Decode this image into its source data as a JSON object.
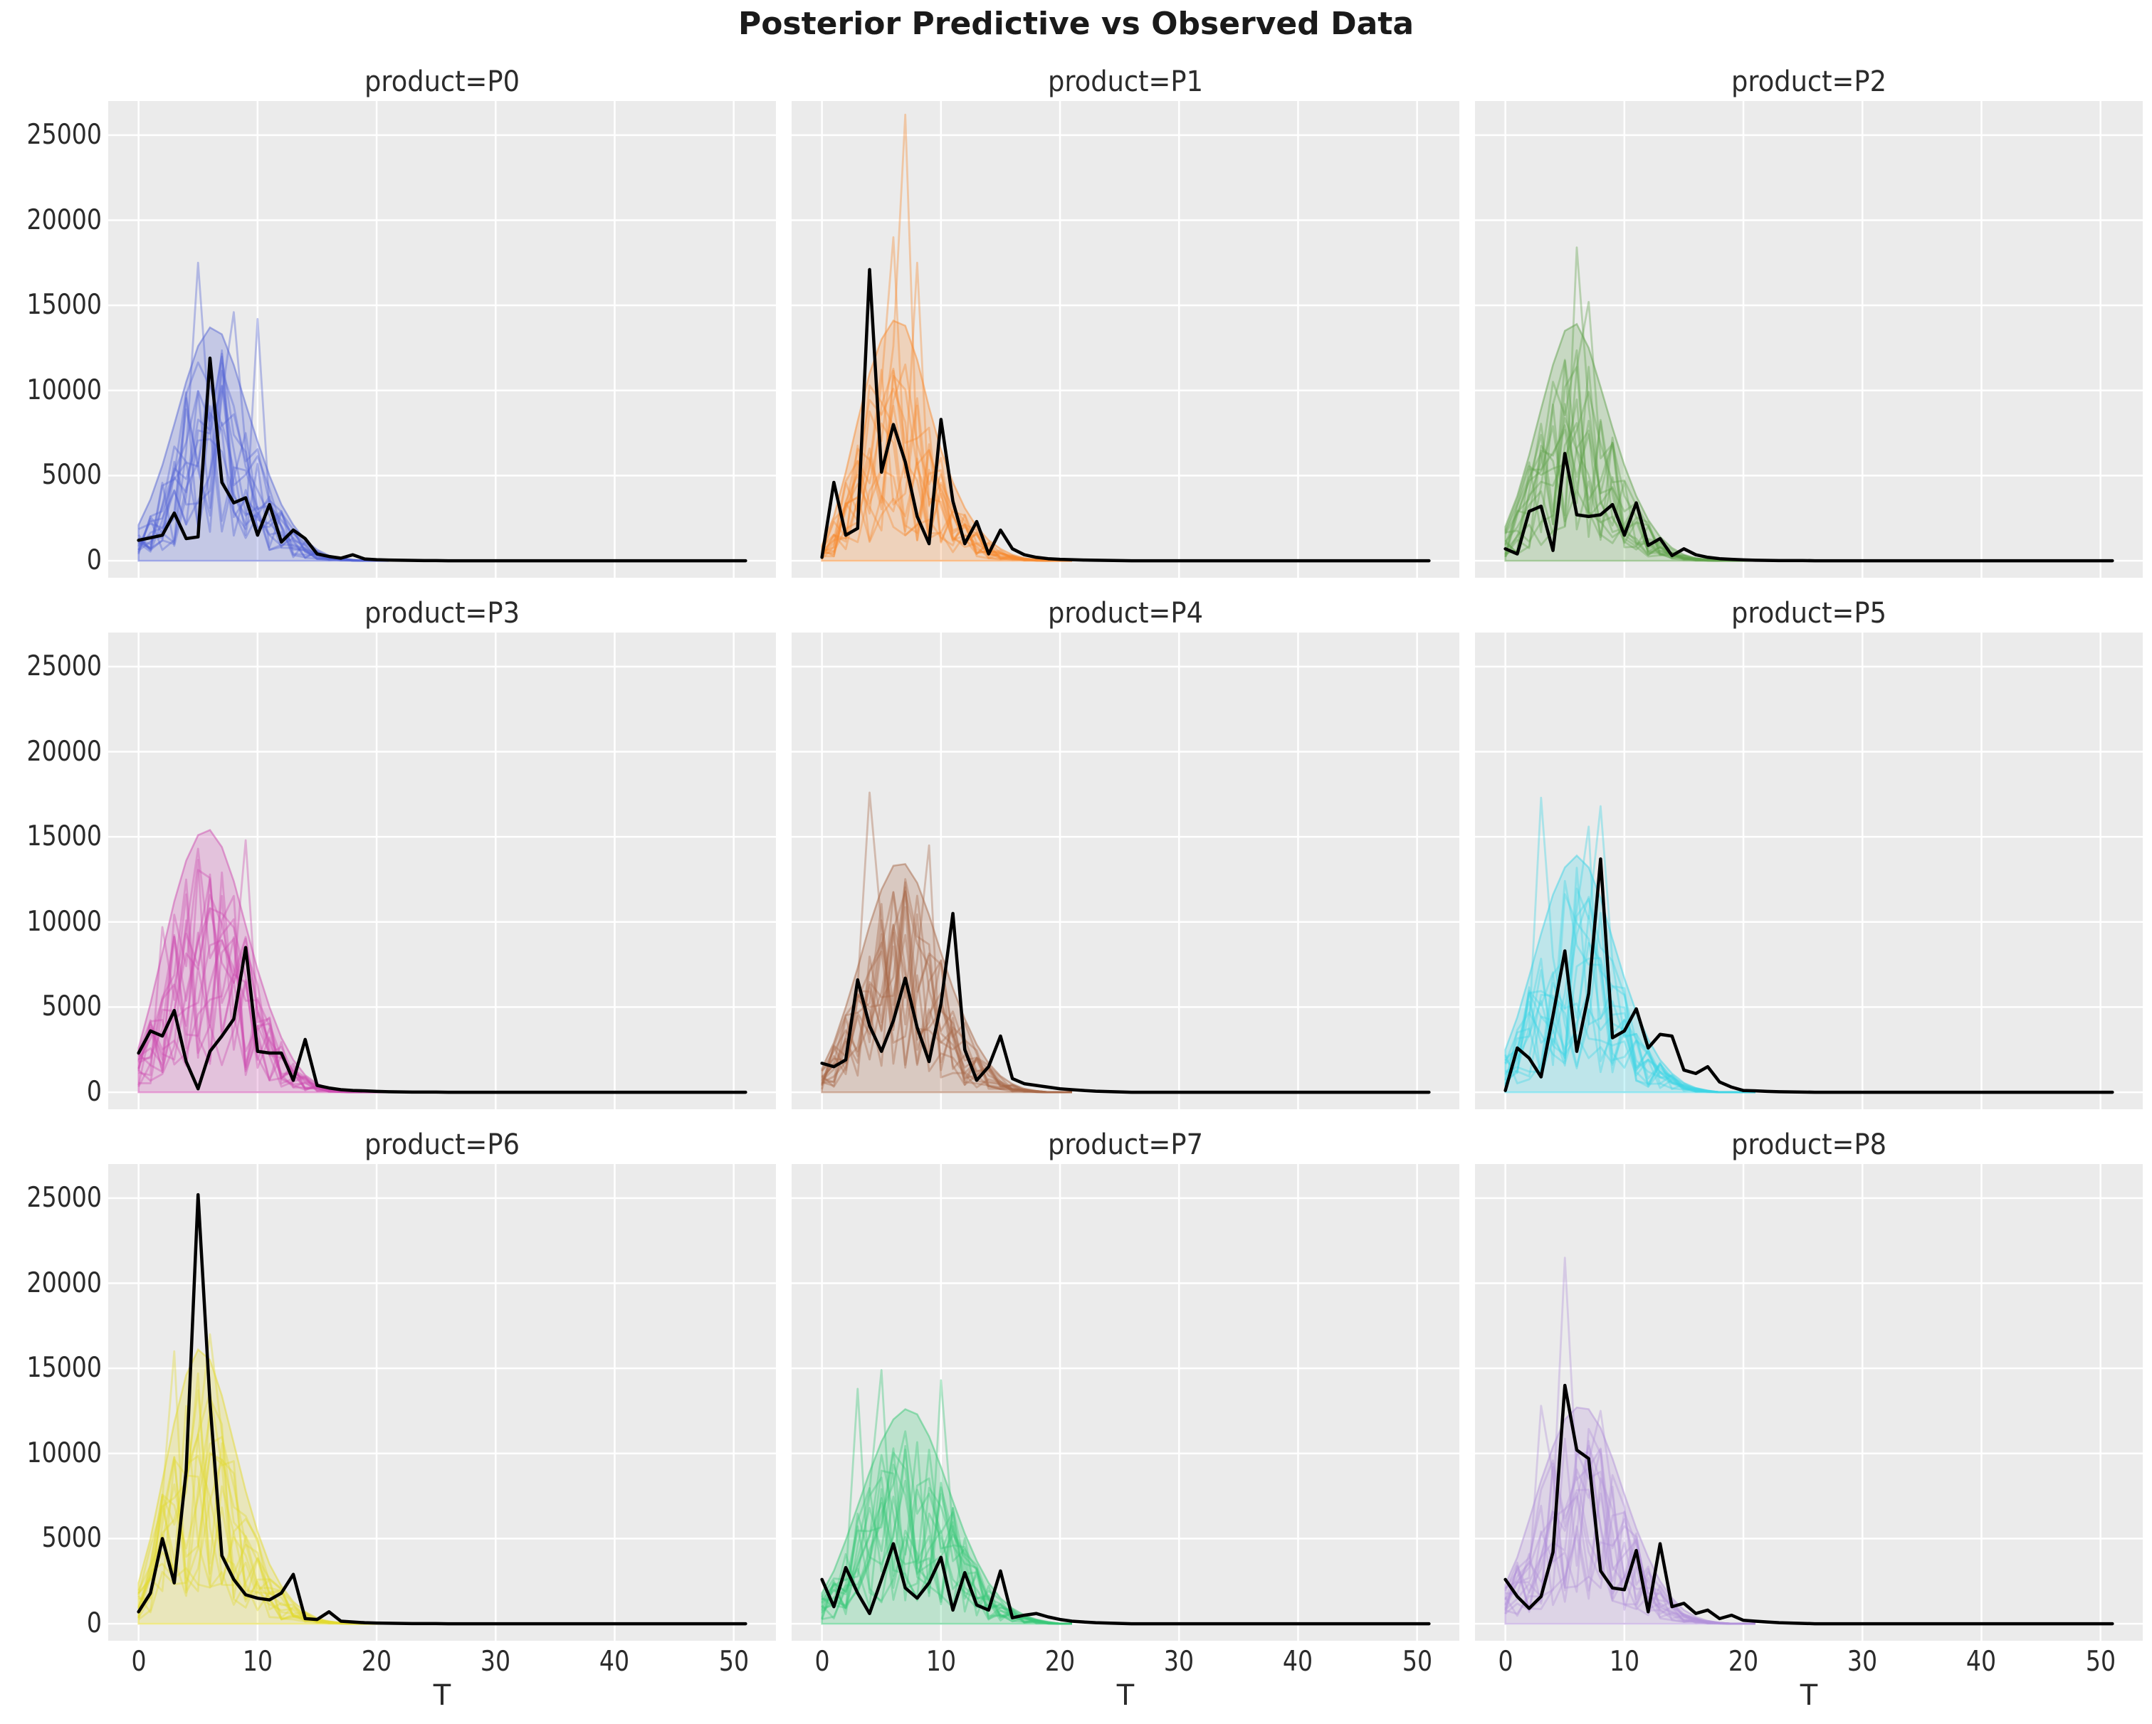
{
  "figure": {
    "title": "Posterior Predictive vs Observed Data",
    "xlabel": "T",
    "background": "#ffffff",
    "axes_background": "#ebebeb",
    "grid_color": "#ffffff",
    "text_color": "#2b2b2b",
    "observed_color": "#000000",
    "x_ticks": [
      0,
      10,
      20,
      30,
      40,
      50
    ],
    "y_ticks": [
      0,
      5000,
      10000,
      15000,
      20000,
      25000
    ],
    "xlim": [
      -2.55,
      53.55
    ],
    "ylim": [
      -1000,
      27000
    ],
    "x_max": 51,
    "n_sample_paths": 15,
    "grid": true,
    "legend": "none"
  },
  "chart_data": [
    {
      "type": "line",
      "title": "product=P0",
      "product": "P0",
      "color": "#5565d4",
      "observed": [
        1200,
        1350,
        1500,
        2800,
        1300,
        1400,
        11900,
        4600,
        3400,
        3700,
        1500,
        3300,
        1100,
        1800,
        1300,
        400,
        250,
        150,
        350,
        100,
        60,
        40,
        30,
        20,
        10,
        10
      ],
      "band_upper": [
        2100,
        3600,
        5600,
        8000,
        10500,
        12600,
        13700,
        13300,
        11500,
        9200,
        7000,
        5000,
        3300,
        2100,
        1200,
        650,
        300,
        150,
        60,
        0,
        0,
        0
      ],
      "sample_spikes": [
        [
          5,
          17500
        ],
        [
          8,
          14600
        ],
        [
          10,
          14200
        ]
      ]
    },
    {
      "type": "line",
      "title": "product=P1",
      "product": "P1",
      "color": "#f78b31",
      "observed": [
        200,
        4600,
        1500,
        1900,
        17100,
        5200,
        8000,
        5800,
        2600,
        1000,
        8300,
        3500,
        1000,
        2300,
        400,
        1800,
        700,
        350,
        200,
        120,
        80,
        60,
        40,
        30,
        20,
        10
      ],
      "band_upper": [
        900,
        2600,
        5200,
        8200,
        11000,
        13000,
        14100,
        13800,
        11800,
        9000,
        6500,
        4600,
        3100,
        2000,
        1200,
        700,
        350,
        150,
        60,
        0,
        0,
        0
      ],
      "sample_spikes": [
        [
          7,
          26200
        ],
        [
          6,
          19000
        ],
        [
          8,
          17500
        ]
      ]
    },
    {
      "type": "line",
      "title": "product=P2",
      "product": "P2",
      "color": "#62a24d",
      "observed": [
        700,
        400,
        2900,
        3200,
        600,
        6300,
        2700,
        2600,
        2700,
        3300,
        1500,
        3400,
        900,
        1300,
        300,
        700,
        350,
        200,
        120,
        80,
        50,
        30,
        20,
        10,
        10,
        10
      ],
      "band_upper": [
        2000,
        3800,
        6200,
        8900,
        11500,
        13500,
        13900,
        12500,
        10200,
        7800,
        5600,
        3800,
        2400,
        1400,
        750,
        350,
        150,
        60,
        0,
        0,
        0,
        0
      ],
      "sample_spikes": [
        [
          6,
          18400
        ],
        [
          7,
          15200
        ]
      ]
    },
    {
      "type": "line",
      "title": "product=P3",
      "product": "P3",
      "color": "#cd4cb0",
      "observed": [
        2300,
        3600,
        3300,
        4800,
        1800,
        200,
        2400,
        3300,
        4300,
        8500,
        2400,
        2300,
        2300,
        700,
        3100,
        400,
        250,
        150,
        100,
        80,
        50,
        30,
        20,
        10,
        10,
        10
      ],
      "band_upper": [
        2600,
        5200,
        8200,
        11200,
        13600,
        15100,
        15400,
        14400,
        12400,
        9800,
        7200,
        5000,
        3200,
        1900,
        1000,
        500,
        220,
        90,
        0,
        0,
        0,
        0
      ],
      "sample_spikes": [
        [
          2,
          9700
        ],
        [
          9,
          14800
        ]
      ]
    },
    {
      "type": "line",
      "title": "product=P4",
      "product": "P4",
      "color": "#a86a4a",
      "observed": [
        1700,
        1500,
        1900,
        6600,
        3900,
        2400,
        4200,
        6700,
        3800,
        1800,
        5200,
        10500,
        2500,
        700,
        1500,
        3300,
        800,
        500,
        400,
        300,
        200,
        150,
        100,
        60,
        40,
        20
      ],
      "band_upper": [
        1400,
        2900,
        5000,
        7300,
        9800,
        11900,
        13300,
        13400,
        12300,
        10400,
        8200,
        6100,
        4300,
        2800,
        1700,
        950,
        480,
        200,
        80,
        0,
        0,
        0
      ],
      "sample_spikes": [
        [
          4,
          17600
        ],
        [
          9,
          14500
        ]
      ]
    },
    {
      "type": "line",
      "title": "product=P5",
      "product": "P5",
      "color": "#3fd4e6",
      "observed": [
        100,
        2600,
        2000,
        900,
        4500,
        8300,
        2400,
        5800,
        13700,
        3200,
        3600,
        4900,
        2600,
        3400,
        3300,
        1300,
        1100,
        1500,
        600,
        300,
        100,
        80,
        50,
        30,
        20,
        10
      ],
      "band_upper": [
        2500,
        4400,
        6800,
        9300,
        11600,
        13200,
        13900,
        13200,
        11400,
        9000,
        6700,
        4700,
        3100,
        1900,
        1100,
        550,
        250,
        100,
        0,
        0,
        0,
        0
      ],
      "sample_spikes": [
        [
          3,
          17300
        ],
        [
          8,
          16800
        ],
        [
          7,
          15600
        ]
      ]
    },
    {
      "type": "line",
      "title": "product=P6",
      "product": "P6",
      "color": "#e3da31",
      "observed": [
        700,
        1800,
        5000,
        2400,
        9000,
        25200,
        13000,
        4000,
        2600,
        1700,
        1500,
        1400,
        1800,
        2900,
        300,
        250,
        700,
        150,
        100,
        60,
        40,
        30,
        20,
        10,
        10,
        10
      ],
      "band_upper": [
        2400,
        5000,
        8400,
        11800,
        14600,
        16100,
        15500,
        13400,
        10600,
        7800,
        5400,
        3500,
        2200,
        1300,
        700,
        330,
        140,
        50,
        0,
        0,
        0,
        0
      ],
      "sample_spikes": [
        [
          3,
          16000
        ],
        [
          6,
          17000
        ]
      ]
    },
    {
      "type": "line",
      "title": "product=P7",
      "product": "P7",
      "color": "#3bc878",
      "observed": [
        2600,
        1000,
        3300,
        1800,
        600,
        2600,
        4700,
        2100,
        1500,
        2400,
        3900,
        800,
        3000,
        1100,
        800,
        3100,
        350,
        500,
        600,
        400,
        250,
        150,
        100,
        60,
        40,
        20
      ],
      "band_upper": [
        1800,
        3100,
        4900,
        6900,
        8900,
        10700,
        12000,
        12600,
        12300,
        11000,
        9200,
        7200,
        5300,
        3700,
        2400,
        1500,
        900,
        500,
        250,
        110,
        0,
        0
      ],
      "sample_spikes": [
        [
          5,
          14900
        ],
        [
          3,
          13800
        ],
        [
          10,
          14300
        ]
      ]
    },
    {
      "type": "line",
      "title": "product=P8",
      "product": "P8",
      "color": "#b493d9",
      "observed": [
        2600,
        1600,
        900,
        1600,
        4200,
        14000,
        10200,
        9700,
        3100,
        2100,
        2000,
        4300,
        700,
        4700,
        1000,
        1200,
        600,
        800,
        300,
        500,
        200,
        150,
        100,
        60,
        40,
        20
      ],
      "band_upper": [
        2300,
        3900,
        6100,
        8400,
        10400,
        12000,
        12700,
        12600,
        11500,
        9700,
        7600,
        5600,
        3900,
        2500,
        1500,
        800,
        400,
        170,
        60,
        0,
        0,
        0
      ],
      "sample_spikes": [
        [
          5,
          21500
        ],
        [
          3,
          12800
        ],
        [
          8,
          12500
        ]
      ]
    }
  ]
}
